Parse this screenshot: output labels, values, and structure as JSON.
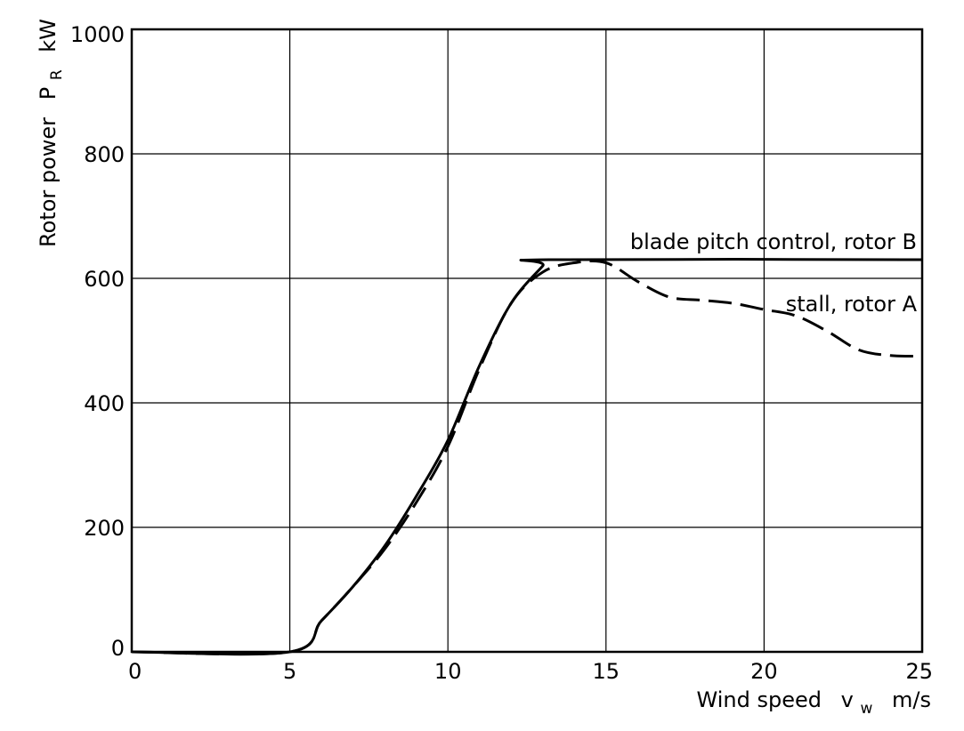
{
  "chart_data": {
    "type": "line",
    "xlabel": "Wind speed",
    "xlabel_symbol": "v",
    "xlabel_subscript": "w",
    "xlabel_unit": "m/s",
    "ylabel": "Rotor power",
    "ylabel_symbol": "P",
    "ylabel_subscript": "R",
    "ylabel_unit": "kW",
    "xlim": [
      0,
      25
    ],
    "ylim": [
      0,
      1000
    ],
    "xticks": [
      0,
      5,
      10,
      15,
      20,
      25
    ],
    "yticks": [
      0,
      200,
      400,
      600,
      800,
      1000
    ],
    "grid": true,
    "series": [
      {
        "name": "blade pitch control, rotor B",
        "style": "solid",
        "x": [
          0,
          5,
          6,
          7,
          8,
          9,
          10,
          11,
          12,
          13,
          13.2,
          25
        ],
        "y": [
          0,
          0,
          50,
          105,
          170,
          250,
          340,
          460,
          560,
          620,
          630,
          630
        ]
      },
      {
        "name": "stall, rotor A",
        "style": "dashed",
        "x": [
          0,
          5,
          6,
          7,
          8,
          9,
          10,
          11,
          12,
          13,
          14,
          15,
          16,
          17,
          18,
          19,
          20,
          21,
          22,
          23,
          24,
          25
        ],
        "y": [
          0,
          0,
          50,
          105,
          165,
          240,
          330,
          455,
          560,
          610,
          625,
          625,
          595,
          570,
          565,
          560,
          550,
          540,
          515,
          485,
          476,
          475
        ]
      }
    ],
    "annotations": [
      {
        "text": "blade pitch control, rotor B",
        "series": 0
      },
      {
        "text": "stall, rotor A",
        "series": 1
      }
    ]
  }
}
